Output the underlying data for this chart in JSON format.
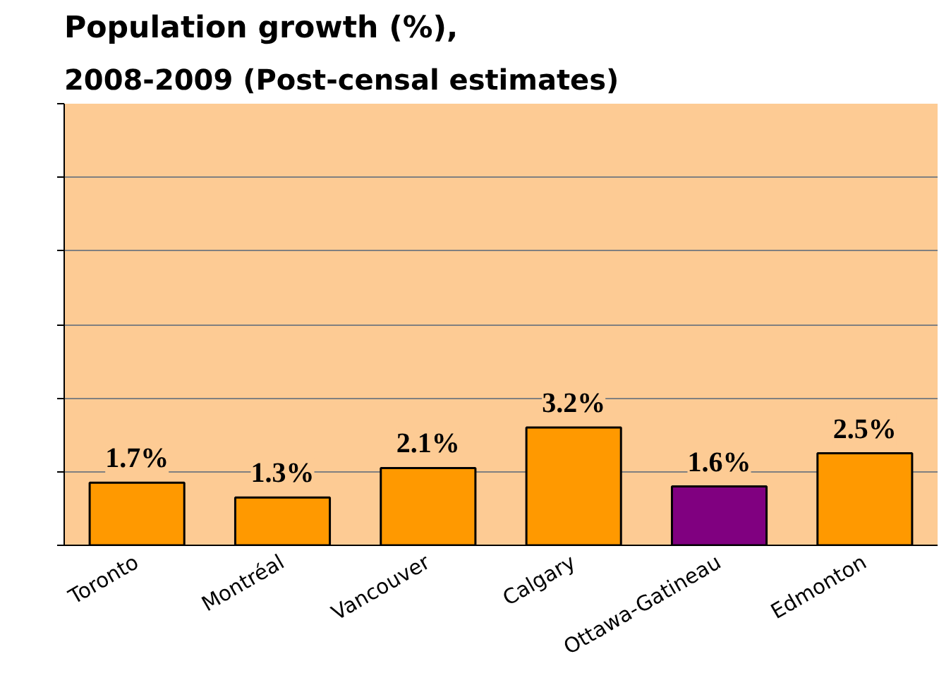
{
  "chart_data": {
    "type": "bar",
    "title": "Population growth (%),",
    "subtitle": "2008-2009 (Post-censal estimates)",
    "categories": [
      "Toronto",
      "Montréal",
      "Vancouver",
      "Calgary",
      "Ottawa-Gatineau",
      "Edmonton"
    ],
    "values": [
      1.7,
      1.3,
      2.1,
      3.2,
      1.6,
      2.5
    ],
    "value_labels": [
      "1.7%",
      "1.3%",
      "2.1%",
      "3.2%",
      "1.6%",
      "2.5%"
    ],
    "colors": [
      "#ff9900",
      "#ff9900",
      "#ff9900",
      "#ff9900",
      "#800080",
      "#ff9900"
    ],
    "ylim": [
      0,
      12
    ],
    "yticks": [
      {
        "value": 0,
        "label": null
      },
      {
        "value": 2,
        "label": null
      },
      {
        "value": 4,
        "label": null
      },
      {
        "value": 6,
        "label": null
      },
      {
        "value": 8,
        "label": null
      },
      {
        "value": 10,
        "label": null
      },
      {
        "value": 12,
        "label": null
      }
    ],
    "tick_labels": "x",
    "grid": "y"
  }
}
